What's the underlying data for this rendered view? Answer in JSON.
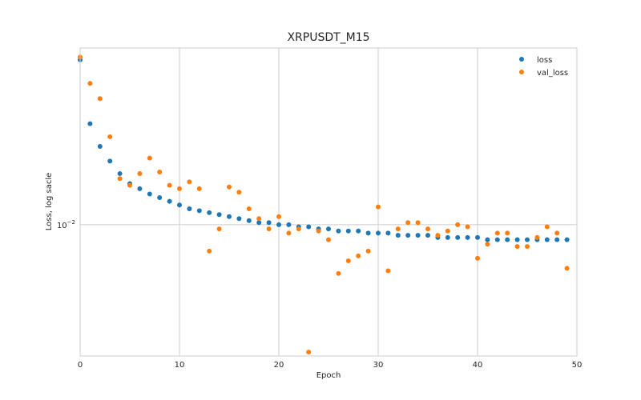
{
  "chart_data": {
    "type": "scatter",
    "title": "XRPUSDT_M15",
    "xlabel": "Epoch",
    "ylabel": "Loss, log sacle",
    "xlim": [
      0,
      50
    ],
    "ylim": [
      0.0053,
      0.0235
    ],
    "yscale": "log",
    "xticks": [
      0,
      10,
      20,
      30,
      40,
      50
    ],
    "yticks": [
      {
        "value": 0.01,
        "base": "10",
        "exp": "−2"
      }
    ],
    "grid": true,
    "legend": "top-right",
    "series": [
      {
        "name": "loss",
        "color": "#1f77b4",
        "x": [
          0,
          1,
          2,
          3,
          4,
          5,
          6,
          7,
          8,
          9,
          10,
          11,
          12,
          13,
          14,
          15,
          16,
          17,
          18,
          19,
          20,
          21,
          22,
          23,
          24,
          25,
          26,
          27,
          28,
          29,
          30,
          31,
          32,
          33,
          34,
          35,
          36,
          37,
          38,
          39,
          40,
          41,
          42,
          43,
          44,
          45,
          46,
          47,
          48,
          49
        ],
        "values": [
          0.0222,
          0.0163,
          0.0146,
          0.0136,
          0.0128,
          0.0122,
          0.0119,
          0.0116,
          0.0114,
          0.0112,
          0.011,
          0.0108,
          0.0107,
          0.0106,
          0.0105,
          0.0104,
          0.0103,
          0.0102,
          0.0101,
          0.0101,
          0.01,
          0.01,
          0.0099,
          0.0099,
          0.0098,
          0.0098,
          0.0097,
          0.0097,
          0.0097,
          0.0096,
          0.0096,
          0.0096,
          0.0095,
          0.0095,
          0.0095,
          0.0095,
          0.0094,
          0.0094,
          0.0094,
          0.0094,
          0.0094,
          0.0093,
          0.0093,
          0.0093,
          0.0093,
          0.0093,
          0.0093,
          0.0093,
          0.0093,
          0.0093
        ]
      },
      {
        "name": "val_loss",
        "color": "#ff7f0e",
        "x": [
          0,
          1,
          2,
          3,
          4,
          5,
          6,
          7,
          8,
          9,
          10,
          11,
          12,
          13,
          14,
          15,
          16,
          17,
          18,
          19,
          20,
          21,
          22,
          23,
          24,
          25,
          26,
          27,
          28,
          29,
          30,
          31,
          32,
          33,
          34,
          35,
          36,
          37,
          38,
          39,
          40,
          41,
          42,
          43,
          44,
          45,
          46,
          47,
          48,
          49
        ],
        "values": [
          0.0225,
          0.0198,
          0.0184,
          0.0153,
          0.0125,
          0.0121,
          0.0128,
          0.0138,
          0.0129,
          0.0121,
          0.0119,
          0.0123,
          0.0119,
          0.0088,
          0.0098,
          0.012,
          0.0117,
          0.0108,
          0.0103,
          0.0098,
          0.0104,
          0.0096,
          0.0098,
          0.0054,
          0.0097,
          0.0093,
          0.0079,
          0.0084,
          0.0086,
          0.0088,
          0.0109,
          0.008,
          0.0098,
          0.0101,
          0.0101,
          0.0098,
          0.0095,
          0.0097,
          0.01,
          0.0099,
          0.0085,
          0.0091,
          0.0096,
          0.0096,
          0.009,
          0.009,
          0.0094,
          0.0099,
          0.0096,
          0.0081
        ]
      }
    ]
  }
}
